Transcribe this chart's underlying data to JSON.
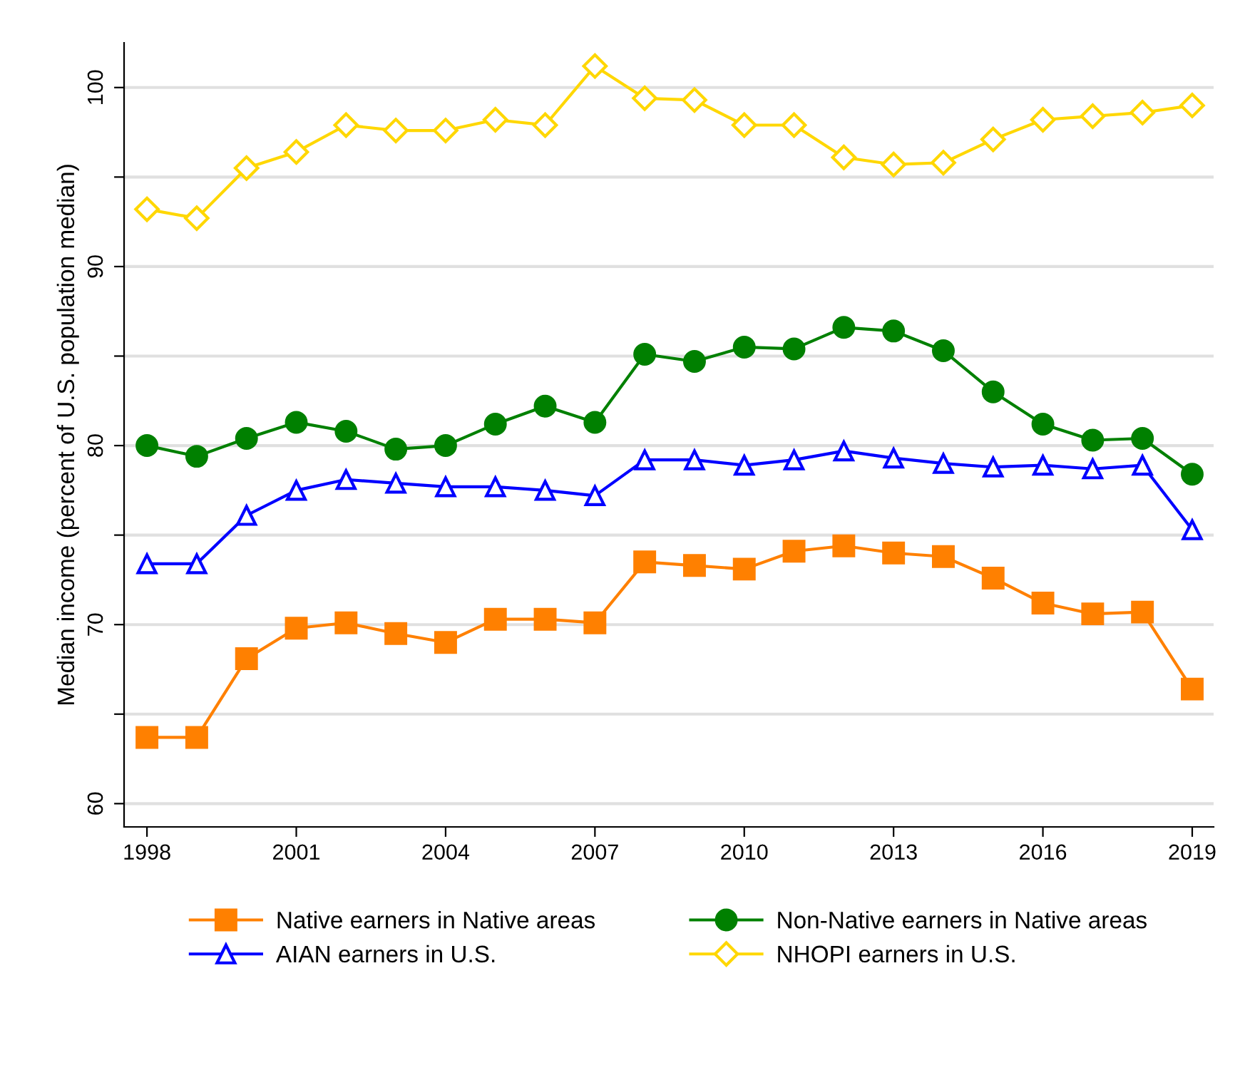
{
  "chart_data": {
    "type": "line",
    "ylabel": "Median income (percent of U.S. population median)",
    "x": [
      1998,
      1999,
      2000,
      2001,
      2002,
      2003,
      2004,
      2005,
      2006,
      2007,
      2008,
      2009,
      2010,
      2011,
      2012,
      2013,
      2014,
      2015,
      2016,
      2017,
      2018,
      2019
    ],
    "series": [
      {
        "name": "Native earners in Native areas",
        "color": "#ff8000",
        "marker": "square",
        "values": [
          63.7,
          63.7,
          68.1,
          69.8,
          70.1,
          69.5,
          69.0,
          70.3,
          70.3,
          70.1,
          73.5,
          73.3,
          73.1,
          74.1,
          74.4,
          74.0,
          73.8,
          72.6,
          71.2,
          70.6,
          70.7,
          66.4
        ]
      },
      {
        "name": "Non-Native earners in Native areas",
        "color": "#008000",
        "marker": "circle",
        "values": [
          80.0,
          79.4,
          80.4,
          81.3,
          80.8,
          79.8,
          80.0,
          81.2,
          82.2,
          81.3,
          85.1,
          84.7,
          85.5,
          85.4,
          86.6,
          86.4,
          85.3,
          83.0,
          81.2,
          80.3,
          80.4,
          78.4
        ]
      },
      {
        "name": "AIAN earners in U.S.",
        "color": "#0000ff",
        "marker": "triangle",
        "values": [
          73.4,
          73.4,
          76.1,
          77.5,
          78.1,
          77.9,
          77.7,
          77.7,
          77.5,
          77.2,
          79.2,
          79.2,
          78.9,
          79.2,
          79.7,
          79.3,
          79.0,
          78.8,
          78.9,
          78.7,
          78.9,
          75.3
        ]
      },
      {
        "name": "NHOPI earners in U.S.",
        "color": "#ffd700",
        "marker": "diamond",
        "values": [
          93.2,
          92.7,
          95.5,
          96.4,
          97.9,
          97.6,
          97.6,
          98.2,
          97.9,
          101.2,
          99.4,
          99.3,
          97.9,
          97.9,
          96.1,
          95.7,
          95.8,
          97.1,
          98.2,
          98.4,
          98.6,
          99.0
        ]
      }
    ],
    "xlim": [
      1997.54,
      2019.43
    ],
    "xticks": [
      1998,
      2001,
      2004,
      2007,
      2010,
      2013,
      2016,
      2019
    ],
    "ylim": [
      58.7,
      102.5
    ],
    "yticks": [
      60,
      {
        "value": 65,
        "label": null
      },
      70,
      {
        "value": 75,
        "label": null
      },
      80,
      {
        "value": 85,
        "label": null
      },
      90,
      {
        "value": 95,
        "label": null
      },
      100
    ],
    "grid": "y",
    "legend": "bottom",
    "line_style": "solid"
  }
}
